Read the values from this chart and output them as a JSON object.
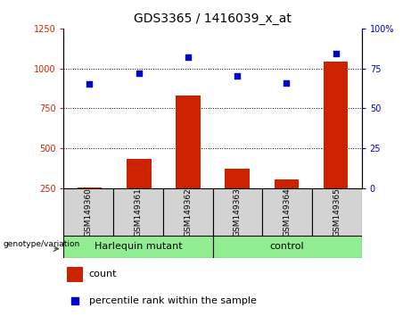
{
  "title": "GDS3365 / 1416039_x_at",
  "samples": [
    "GSM149360",
    "GSM149361",
    "GSM149362",
    "GSM149363",
    "GSM149364",
    "GSM149365"
  ],
  "counts": [
    255,
    430,
    830,
    370,
    305,
    1040
  ],
  "percentile_ranks": [
    65,
    72,
    82,
    70,
    66,
    84
  ],
  "groups": [
    "Harlequin mutant",
    "Harlequin mutant",
    "Harlequin mutant",
    "control",
    "control",
    "control"
  ],
  "group_labels": [
    "Harlequin mutant",
    "control"
  ],
  "left_ylim": [
    250,
    1250
  ],
  "left_yticks": [
    250,
    500,
    750,
    1000,
    1250
  ],
  "right_ylim": [
    0,
    100
  ],
  "right_yticks": [
    0,
    25,
    50,
    75,
    100
  ],
  "bar_color": "#cc2200",
  "scatter_color": "#0000cc",
  "bar_bottom": 250,
  "legend_count_label": "count",
  "legend_pct_label": "percentile rank within the sample",
  "genotype_label": "genotype/variation",
  "ylabel_left_color": "#cc2200",
  "ylabel_right_color": "#0000cc",
  "sample_bg_color": "#d3d3d3",
  "group_color": "#90EE90",
  "title_fontsize": 10,
  "tick_fontsize": 7,
  "legend_fontsize": 8,
  "sample_fontsize": 6.5
}
